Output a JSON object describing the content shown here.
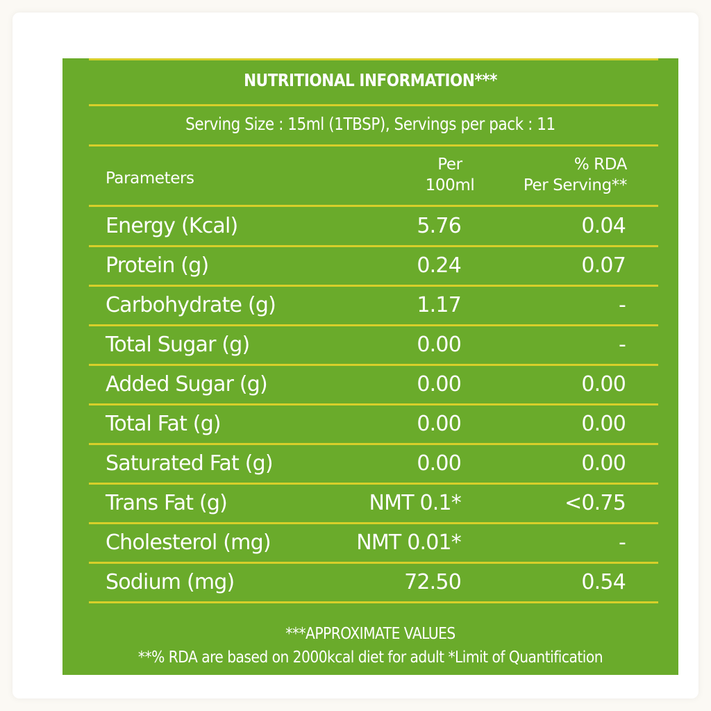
{
  "label": {
    "title": "NUTRITIONAL INFORMATION***",
    "serving": "Serving Size : 15ml (1TBSP),  Servings per pack : 11",
    "headers": {
      "param": "Parameters",
      "per_line1": "Per",
      "per_line2": "100ml",
      "rda_line1": "% RDA",
      "rda_line2": "Per Serving**"
    },
    "rows": [
      {
        "name": "Energy (Kcal)",
        "per": "5.76",
        "rda": "0.04"
      },
      {
        "name": "Protein (g)",
        "per": "0.24",
        "rda": "0.07"
      },
      {
        "name": "Carbohydrate (g)",
        "per": "1.17",
        "rda": "-"
      },
      {
        "name": "Total Sugar (g)",
        "per": "0.00",
        "rda": "-"
      },
      {
        "name": "Added Sugar (g)",
        "per": "0.00",
        "rda": "0.00"
      },
      {
        "name": "Total Fat (g)",
        "per": "0.00",
        "rda": "0.00"
      },
      {
        "name": "Saturated Fat (g)",
        "per": "0.00",
        "rda": "0.00"
      },
      {
        "name": "Trans Fat (g)",
        "per": "NMT 0.1*",
        "rda": "<0.75"
      },
      {
        "name": "Cholesterol (mg)",
        "per": "NMT 0.01*",
        "rda": "-"
      },
      {
        "name": "Sodium (mg)",
        "per": "72.50",
        "rda": "0.54"
      }
    ],
    "footnote_approx": "***APPROXIMATE VALUES",
    "footnote_rda": "**% RDA are based on 2000kcal diet for adult *Limit of Quantification"
  },
  "colors": {
    "panel": "#6aab2b",
    "rule": "#d7cf2a",
    "text": "#ffffff"
  }
}
